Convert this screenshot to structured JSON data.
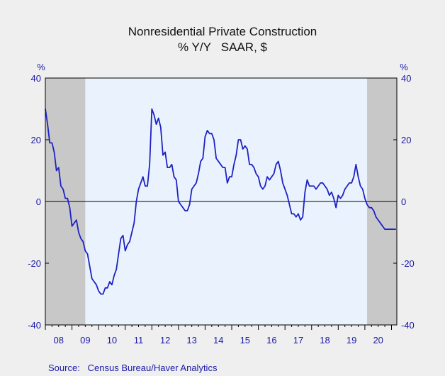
{
  "chart_data": {
    "type": "line",
    "title": "Nonresidential Private Construction",
    "subtitle": "% Y/Y   SAAR, $",
    "y_unit_left": "%",
    "y_unit_right": "%",
    "ylim": [
      -40,
      40
    ],
    "yticks": [
      40,
      20,
      0,
      -20,
      -40
    ],
    "xlim": [
      2008.0,
      2021.2
    ],
    "x_tick_labels": [
      "08",
      "09",
      "10",
      "11",
      "12",
      "13",
      "14",
      "15",
      "16",
      "17",
      "18",
      "19",
      "20"
    ],
    "grid": false,
    "zero_line": true,
    "recessions": [
      {
        "start": "2008-01",
        "end": "2009-06"
      },
      {
        "start": "2020-02",
        "end": "2021-03"
      }
    ],
    "colors": {
      "line": "#1e22c4",
      "plot_background": "#eaf3fd",
      "recession_shade": "#c8c8c8",
      "axis_text": "#1a1aa8",
      "page_background": "#efefef"
    },
    "series": [
      {
        "x": [
          "2008-01",
          "2008-02",
          "2008-03",
          "2008-04",
          "2008-05",
          "2008-06",
          "2008-07",
          "2008-08",
          "2008-09",
          "2008-10",
          "2008-11",
          "2008-12",
          "2009-01",
          "2009-02",
          "2009-03",
          "2009-04",
          "2009-05",
          "2009-06",
          "2009-07",
          "2009-08",
          "2009-09",
          "2009-10",
          "2009-11",
          "2009-12",
          "2010-01",
          "2010-02",
          "2010-03",
          "2010-04",
          "2010-05",
          "2010-06",
          "2010-07",
          "2010-08",
          "2010-09",
          "2010-10",
          "2010-11",
          "2010-12",
          "2011-01",
          "2011-02",
          "2011-03",
          "2011-04",
          "2011-05",
          "2011-06",
          "2011-07",
          "2011-08",
          "2011-09",
          "2011-10",
          "2011-11",
          "2011-12",
          "2012-01",
          "2012-02",
          "2012-03",
          "2012-04",
          "2012-05",
          "2012-06",
          "2012-07",
          "2012-08",
          "2012-09",
          "2012-10",
          "2012-11",
          "2012-12",
          "2013-01",
          "2013-02",
          "2013-03",
          "2013-04",
          "2013-05",
          "2013-06",
          "2013-07",
          "2013-08",
          "2013-09",
          "2013-10",
          "2013-11",
          "2013-12",
          "2014-01",
          "2014-02",
          "2014-03",
          "2014-04",
          "2014-05",
          "2014-06",
          "2014-07",
          "2014-08",
          "2014-09",
          "2014-10",
          "2014-11",
          "2014-12",
          "2015-01",
          "2015-02",
          "2015-03",
          "2015-04",
          "2015-05",
          "2015-06",
          "2015-07",
          "2015-08",
          "2015-09",
          "2015-10",
          "2015-11",
          "2015-12",
          "2016-01",
          "2016-02",
          "2016-03",
          "2016-04",
          "2016-05",
          "2016-06",
          "2016-07",
          "2016-08",
          "2016-09",
          "2016-10",
          "2016-11",
          "2016-12",
          "2017-01",
          "2017-02",
          "2017-03",
          "2017-04",
          "2017-05",
          "2017-06",
          "2017-07",
          "2017-08",
          "2017-09",
          "2017-10",
          "2017-11",
          "2017-12",
          "2018-01",
          "2018-02",
          "2018-03",
          "2018-04",
          "2018-05",
          "2018-06",
          "2018-07",
          "2018-08",
          "2018-09",
          "2018-10",
          "2018-11",
          "2018-12",
          "2019-01",
          "2019-02",
          "2019-03",
          "2019-04",
          "2019-05",
          "2019-06",
          "2019-07",
          "2019-08",
          "2019-09",
          "2019-10",
          "2019-11",
          "2019-12",
          "2020-01",
          "2020-02",
          "2020-03",
          "2020-04",
          "2020-05",
          "2020-06",
          "2020-07",
          "2020-08",
          "2020-09",
          "2020-10",
          "2020-11",
          "2020-12",
          "2021-01",
          "2021-02",
          "2021-03"
        ],
        "values": [
          30,
          25,
          19,
          19,
          16,
          10,
          11,
          5,
          4,
          1,
          1,
          -2,
          -8,
          -7,
          -6,
          -10,
          -12,
          -13,
          -16,
          -17,
          -21,
          -25,
          -26,
          -27,
          -29,
          -30,
          -30,
          -28,
          -28,
          -26,
          -27,
          -24,
          -22,
          -17,
          -12,
          -11,
          -16,
          -14,
          -13,
          -10,
          -7,
          0,
          4,
          6,
          8,
          5,
          5,
          12,
          30,
          28,
          25,
          27,
          24,
          15,
          16,
          11,
          11,
          12,
          8,
          7,
          0,
          -1,
          -2,
          -3,
          -3,
          -1,
          4,
          5,
          6,
          9,
          13,
          14,
          21,
          23,
          22,
          22,
          20,
          14,
          13,
          12,
          11,
          11,
          6,
          8,
          8,
          12,
          15,
          20,
          20,
          17,
          18,
          17,
          12,
          12,
          11,
          9,
          8,
          5,
          4,
          5,
          8,
          7,
          8,
          9,
          12,
          13,
          10,
          6,
          4,
          2,
          -1,
          -4,
          -4,
          -5,
          -4,
          -6,
          -5,
          3,
          7,
          5,
          5,
          5,
          4,
          5,
          6,
          6,
          5,
          4,
          2,
          3,
          1,
          -2,
          2,
          1,
          2,
          4,
          5,
          6,
          6,
          8,
          12,
          8,
          5,
          4,
          1,
          -1,
          -2,
          -2,
          -3,
          -5,
          -6,
          -7,
          -8,
          -9,
          -9,
          -9,
          -9,
          -9,
          -9
        ]
      }
    ],
    "source": "Source:   Census Bureau/Haver Analytics"
  }
}
